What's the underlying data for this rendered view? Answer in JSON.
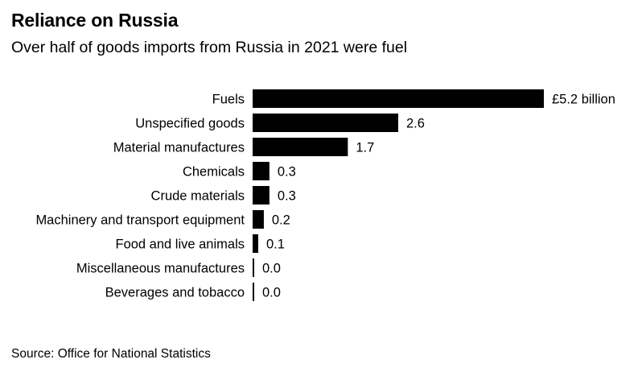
{
  "title": "Reliance on Russia",
  "subtitle": "Over half of goods imports from Russia in 2021 were fuel",
  "source": "Source: Office for National Statistics",
  "colors": {
    "bar": "#000000",
    "text": "#000000",
    "background": "#ffffff"
  },
  "chart_data": {
    "type": "bar",
    "orientation": "horizontal",
    "title": "Reliance on Russia",
    "subtitle": "Over half of goods imports from Russia in 2021 were fuel",
    "xlabel": "",
    "ylabel": "",
    "unit": "£ billion",
    "categories": [
      "Fuels",
      "Unspecified goods",
      "Material manufactures",
      "Chemicals",
      "Crude materials",
      "Machinery and transport equipment",
      "Food and live animals",
      "Miscellaneous manufactures",
      "Beverages and tobacco"
    ],
    "values": [
      5.2,
      2.6,
      1.7,
      0.3,
      0.3,
      0.2,
      0.1,
      0.02,
      0.02
    ],
    "value_labels": [
      "£5.2 billion",
      "2.6",
      "1.7",
      "0.3",
      "0.3",
      "0.2",
      "0.1",
      "0.0",
      "0.0"
    ],
    "xlim": [
      0,
      5.2
    ],
    "grid": false,
    "legend": "none"
  }
}
